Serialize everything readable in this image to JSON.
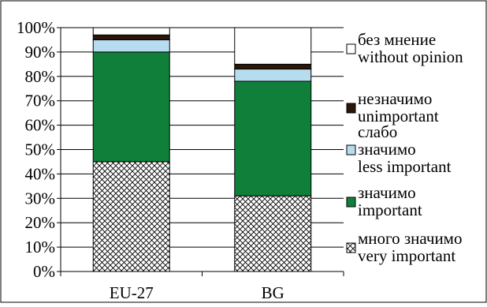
{
  "chart_data": {
    "type": "bar",
    "stacked": true,
    "categories": [
      "EU-27",
      "BG"
    ],
    "series": [
      {
        "name": "много значимо\nvery important",
        "values": [
          45,
          31
        ],
        "fill": "hatch",
        "color": "#ffffff"
      },
      {
        "name": "значимо\nimportant",
        "values": [
          45,
          47
        ],
        "fill": "solid",
        "color": "#0f7f3a"
      },
      {
        "name": "слабо\nзначимо\nless important",
        "values": [
          5,
          5
        ],
        "fill": "solid",
        "color": "#b7dcf0"
      },
      {
        "name": "незначимо\nunimportant",
        "values": [
          2,
          2
        ],
        "fill": "solid",
        "color": "#2b1608"
      },
      {
        "name": "без мнение\nwithout opinion",
        "values": [
          3,
          15
        ],
        "fill": "solid",
        "color": "#ffffff"
      }
    ],
    "y_ticks": [
      "0%",
      "10%",
      "20%",
      "30%",
      "40%",
      "50%",
      "60%",
      "70%",
      "80%",
      "90%",
      "100%"
    ],
    "ylim": [
      0,
      100
    ],
    "grid": true,
    "legend_position": "right",
    "title": "",
    "xlabel": "",
    "ylabel": ""
  }
}
